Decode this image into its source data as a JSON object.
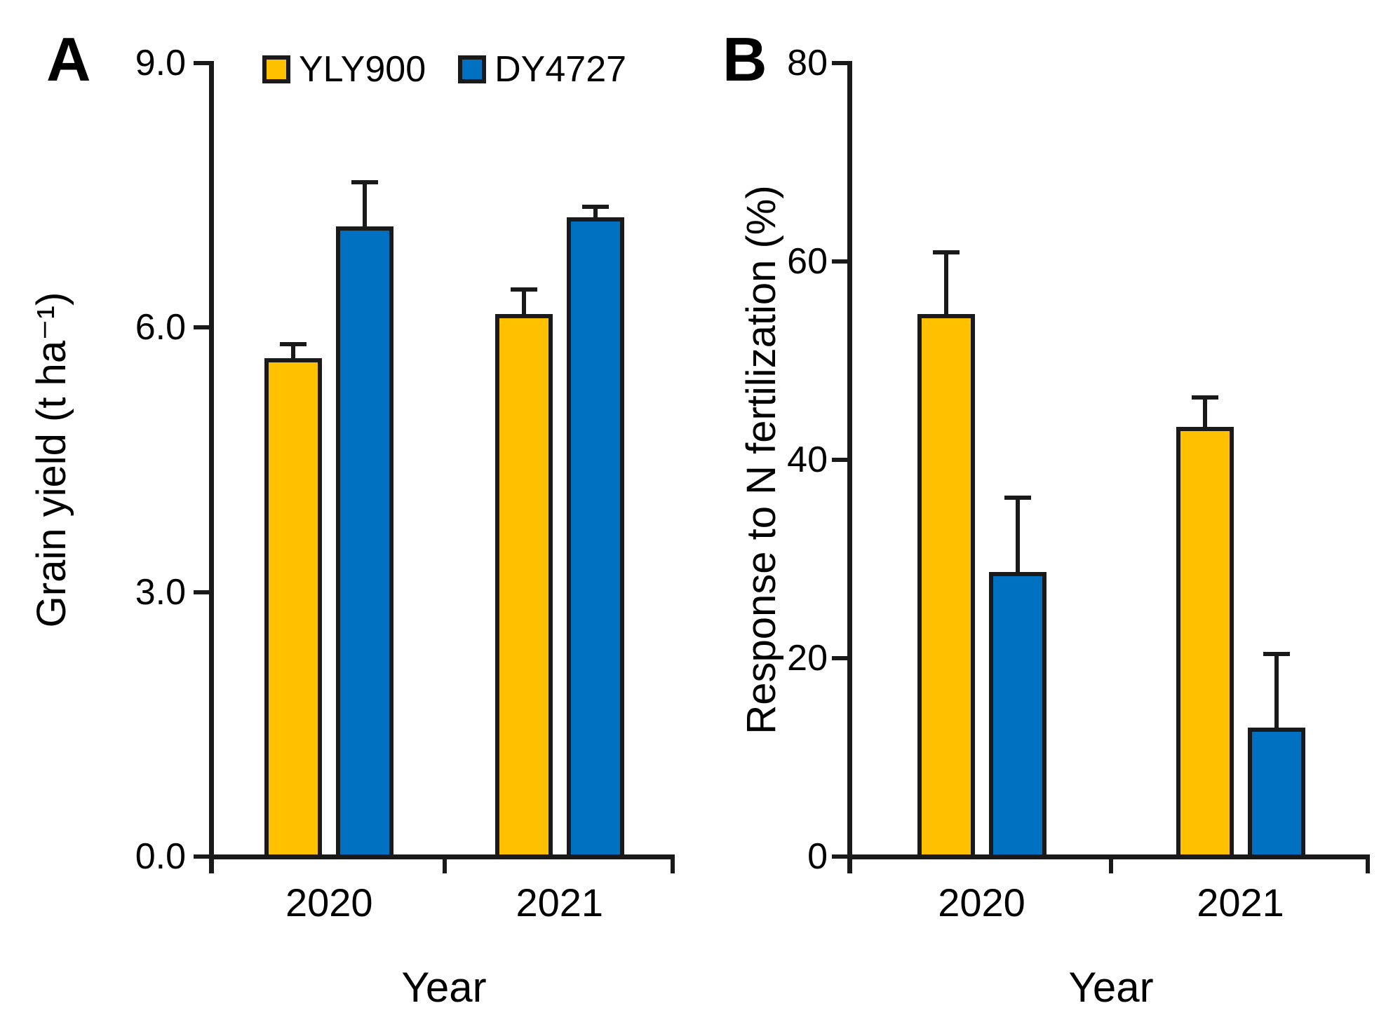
{
  "figure": {
    "background": "#ffffff",
    "axis_color": "#1a1a1a",
    "series_colors": {
      "YLY900": "#FFC000",
      "DY4727": "#0070C0"
    }
  },
  "legend": {
    "items": [
      {
        "label": "YLY900",
        "color": "#FFC000"
      },
      {
        "label": "DY4727",
        "color": "#0070C0"
      }
    ],
    "position": "top-center-of-panel-A"
  },
  "chart_data": [
    {
      "type": "bar",
      "panel": "A",
      "ylabel": "Grain yield (t ha⁻¹)",
      "xlabel": "Year",
      "ylim": [
        0,
        9
      ],
      "yticks": [
        {
          "v": 0,
          "label": "0.0"
        },
        {
          "v": 3,
          "label": "3.0"
        },
        {
          "v": 6,
          "label": "6.0"
        },
        {
          "v": 9,
          "label": "9.0"
        }
      ],
      "categories": [
        "2020",
        "2021"
      ],
      "grid": false,
      "series": [
        {
          "name": "YLY900",
          "values": [
            5.65,
            6.15
          ],
          "errors_plus": [
            0.16,
            0.28
          ]
        },
        {
          "name": "DY4727",
          "values": [
            7.15,
            7.25
          ],
          "errors_plus": [
            0.5,
            0.12
          ]
        }
      ]
    },
    {
      "type": "bar",
      "panel": "B",
      "ylabel": "Response to N fertilization (%)",
      "xlabel": "Year",
      "ylim": [
        0,
        80
      ],
      "yticks": [
        {
          "v": 0,
          "label": "0"
        },
        {
          "v": 20,
          "label": "20"
        },
        {
          "v": 40,
          "label": "40"
        },
        {
          "v": 60,
          "label": "60"
        },
        {
          "v": 80,
          "label": "80"
        }
      ],
      "categories": [
        "2020",
        "2021"
      ],
      "grid": false,
      "series": [
        {
          "name": "YLY900",
          "values": [
            54.7,
            43.3
          ],
          "errors_plus": [
            6.2,
            3.0
          ]
        },
        {
          "name": "DY4727",
          "values": [
            28.7,
            13.0
          ],
          "errors_plus": [
            7.5,
            7.4
          ]
        }
      ]
    }
  ]
}
